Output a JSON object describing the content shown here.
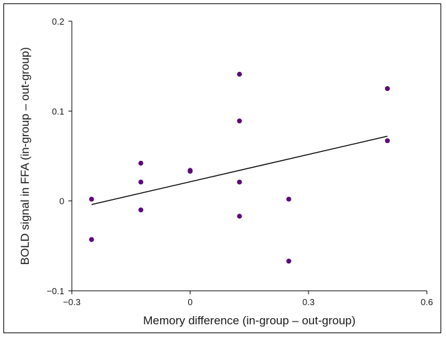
{
  "chart_data": {
    "type": "scatter",
    "xlabel": "Memory difference (in-group – out-group)",
    "ylabel": "BOLD signal in FFA (in-group – out-group)",
    "xlim": [
      -0.3,
      0.6
    ],
    "ylim": [
      -0.1,
      0.2
    ],
    "x_ticks": [
      "−0.3",
      "0",
      "0.3",
      "0.6"
    ],
    "y_ticks": [
      "−0.1",
      "0",
      "0.1",
      "0.2"
    ],
    "x_tick_values": [
      -0.3,
      0,
      0.3,
      0.6
    ],
    "y_tick_values": [
      -0.1,
      0,
      0.1,
      0.2
    ],
    "grid": false,
    "series": [
      {
        "points": [
          {
            "x": -0.25,
            "y": 0.002
          },
          {
            "x": -0.25,
            "y": -0.043
          },
          {
            "x": -0.125,
            "y": 0.042
          },
          {
            "x": -0.125,
            "y": 0.021
          },
          {
            "x": -0.125,
            "y": -0.01
          },
          {
            "x": 0.0,
            "y": 0.034
          },
          {
            "x": 0.0,
            "y": 0.033
          },
          {
            "x": 0.125,
            "y": 0.141
          },
          {
            "x": 0.125,
            "y": 0.089
          },
          {
            "x": 0.125,
            "y": 0.021
          },
          {
            "x": 0.125,
            "y": -0.017
          },
          {
            "x": 0.25,
            "y": 0.002
          },
          {
            "x": 0.25,
            "y": -0.067
          },
          {
            "x": 0.5,
            "y": 0.125
          },
          {
            "x": 0.5,
            "y": 0.067
          }
        ]
      }
    ],
    "trendline": {
      "x": [
        -0.25,
        0.5
      ],
      "y": [
        -0.004,
        0.072
      ]
    },
    "colors": {
      "points": "#5b0a7a",
      "trendline": "#000000",
      "axes": "#000000"
    }
  }
}
